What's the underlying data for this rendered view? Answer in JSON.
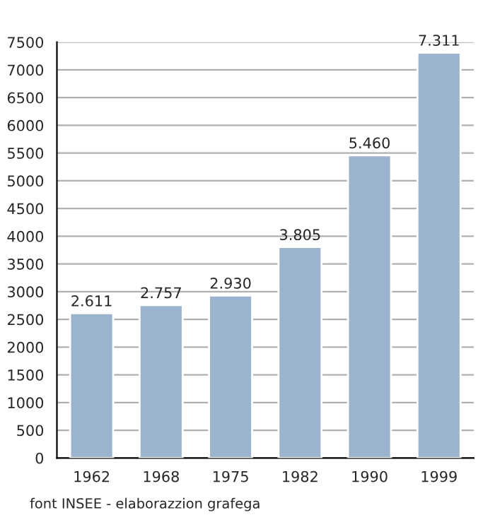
{
  "chart_data": {
    "type": "bar",
    "categories": [
      "1962",
      "1968",
      "1975",
      "1982",
      "1990",
      "1999"
    ],
    "values": [
      2611,
      2757,
      2930,
      3805,
      5460,
      7311
    ],
    "value_labels": [
      "2.611",
      "2.757",
      "2.930",
      "3.805",
      "5.460",
      "7.311"
    ],
    "color": "#9bb3cf",
    "ylim": [
      0,
      7500
    ],
    "yticks": [
      0,
      500,
      1000,
      1500,
      2000,
      2500,
      3000,
      3500,
      4000,
      4500,
      5000,
      5500,
      6000,
      6500,
      7000,
      7500
    ],
    "grid": "y",
    "annotations": [
      "font INSEE - elaborazzion grafega"
    ]
  }
}
